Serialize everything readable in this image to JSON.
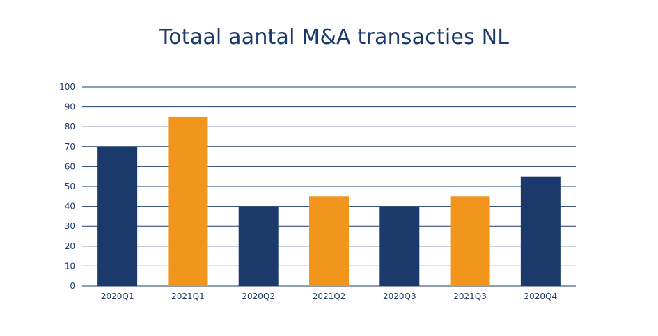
{
  "chart_data": {
    "type": "bar",
    "title": "Totaal aantal M&A transacties NL",
    "categories": [
      "2020Q1",
      "2021Q1",
      "2020Q2",
      "2021Q2",
      "2020Q3",
      "2021Q3",
      "2020Q4"
    ],
    "values": [
      70,
      85,
      40,
      45,
      40,
      45,
      55
    ],
    "bar_colors": [
      "#1b3a6b",
      "#f2951d",
      "#1b3a6b",
      "#f2951d",
      "#1b3a6b",
      "#f2951d",
      "#1b3a6b"
    ],
    "ylim": [
      0,
      100
    ],
    "yticks": [
      "0",
      "10",
      "20",
      "30",
      "40",
      "50",
      "60",
      "70",
      "80",
      "90",
      "100"
    ],
    "grid": true,
    "xlabel": "",
    "ylabel": ""
  },
  "colors": {
    "title": "#1a3a6a",
    "axis_text": "#1f3d6b",
    "gridline": "#1f3d6b"
  }
}
